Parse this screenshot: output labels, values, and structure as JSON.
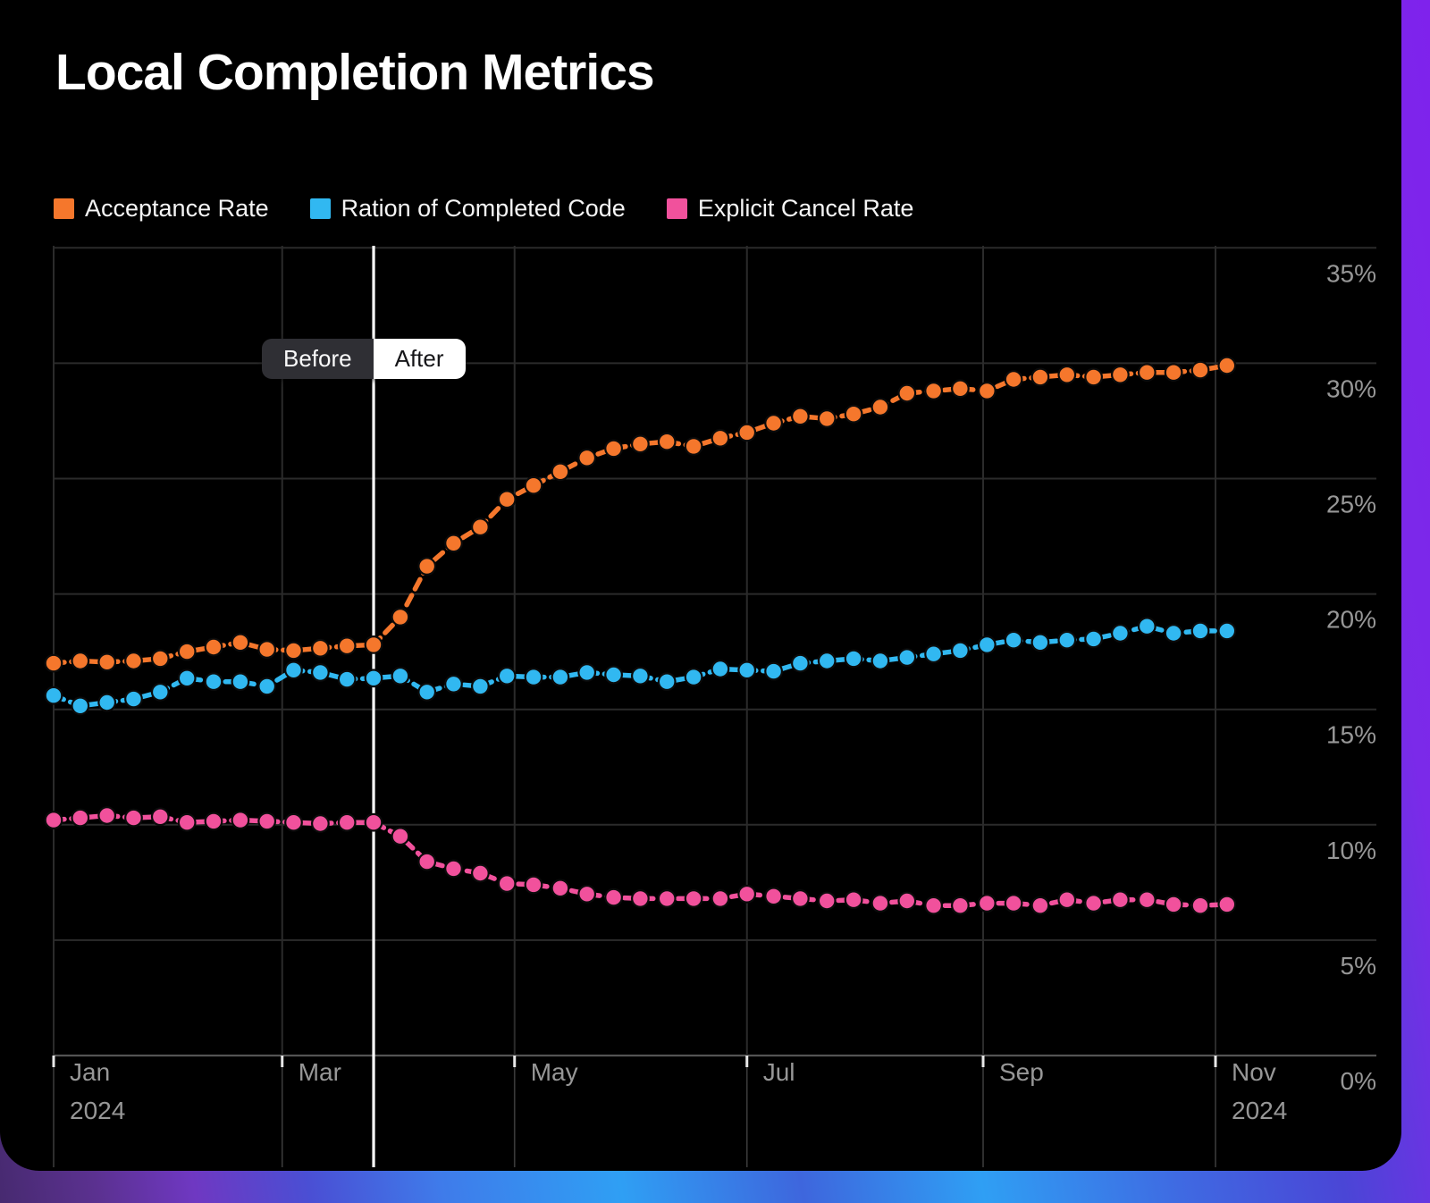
{
  "title": "Local Completion Metrics",
  "legend": [
    {
      "label": "Acceptance Rate",
      "color": "#F5772C",
      "icon": "square-swatch"
    },
    {
      "label": "Ration of Completed Code",
      "color": "#31B8F1",
      "icon": "square-swatch"
    },
    {
      "label": "Explicit Cancel Rate",
      "color": "#F1519C",
      "icon": "square-swatch"
    }
  ],
  "toggle": {
    "before": "Before",
    "after": "After",
    "selected": "After"
  },
  "chart_data": {
    "type": "line",
    "title": "Local Completion Metrics",
    "x_axis": {
      "unit": "days since Jan 1, 2024",
      "cadence_days": 7,
      "total_days": 305,
      "ticks": [
        {
          "label": "Jan",
          "sublabel": "2024",
          "day": 0
        },
        {
          "label": "Mar",
          "sublabel": "",
          "day": 60
        },
        {
          "label": "May",
          "sublabel": "",
          "day": 121
        },
        {
          "label": "Jul",
          "sublabel": "",
          "day": 182
        },
        {
          "label": "Sep",
          "sublabel": "",
          "day": 244
        },
        {
          "label": "Nov",
          "sublabel": "2024",
          "day": 305
        }
      ]
    },
    "y_axis": {
      "unit": "%",
      "min": 0,
      "max": 35,
      "step": 5,
      "tick_values": [
        0,
        5,
        10,
        15,
        20,
        25,
        30,
        35
      ],
      "tick_labels": [
        "0%",
        "5%",
        "10%",
        "15%",
        "20%",
        "25%",
        "30%",
        "35%"
      ]
    },
    "marker": {
      "label_left": "Before",
      "label_right": "After",
      "day": 84,
      "color": "#ffffff"
    },
    "grid": {
      "line_color": "#2b2b2b",
      "axis_color": "#545454",
      "label_color": "#979797",
      "below_axis_tick_color": "#3a3a3a",
      "mini_tick_color": "#e8e8e8"
    },
    "series": [
      {
        "name": "Acceptance Rate",
        "color": "#F5772C",
        "values": [
          17.0,
          17.1,
          17.05,
          17.1,
          17.2,
          17.5,
          17.7,
          17.9,
          17.6,
          17.55,
          17.65,
          17.75,
          17.8,
          19.0,
          21.2,
          22.2,
          22.9,
          24.1,
          24.7,
          25.3,
          25.9,
          26.3,
          26.5,
          26.6,
          26.4,
          26.75,
          27.0,
          27.4,
          27.7,
          27.6,
          27.8,
          28.1,
          28.7,
          28.8,
          28.9,
          28.8,
          29.3,
          29.4,
          29.5,
          29.4,
          29.5,
          29.6,
          29.6,
          29.7,
          29.9
        ]
      },
      {
        "name": "Ration of Completed Code",
        "color": "#31B8F1",
        "values": [
          15.6,
          15.15,
          15.3,
          15.45,
          15.75,
          16.35,
          16.2,
          16.2,
          16.0,
          16.7,
          16.6,
          16.3,
          16.35,
          16.45,
          15.75,
          16.1,
          16.0,
          16.45,
          16.4,
          16.4,
          16.6,
          16.5,
          16.45,
          16.2,
          16.4,
          16.75,
          16.7,
          16.65,
          17.0,
          17.1,
          17.2,
          17.1,
          17.25,
          17.4,
          17.55,
          17.8,
          18.0,
          17.9,
          18.0,
          18.05,
          18.3,
          18.6,
          18.3,
          18.4,
          18.4
        ]
      },
      {
        "name": "Explicit Cancel Rate",
        "color": "#F1519C",
        "values": [
          10.2,
          10.3,
          10.4,
          10.3,
          10.35,
          10.1,
          10.15,
          10.2,
          10.15,
          10.1,
          10.05,
          10.1,
          10.1,
          9.5,
          8.4,
          8.1,
          7.9,
          7.45,
          7.4,
          7.25,
          7.0,
          6.85,
          6.8,
          6.8,
          6.8,
          6.8,
          7.0,
          6.9,
          6.8,
          6.7,
          6.75,
          6.6,
          6.7,
          6.5,
          6.5,
          6.6,
          6.6,
          6.5,
          6.75,
          6.6,
          6.75,
          6.75,
          6.55,
          6.5,
          6.55
        ]
      }
    ]
  }
}
